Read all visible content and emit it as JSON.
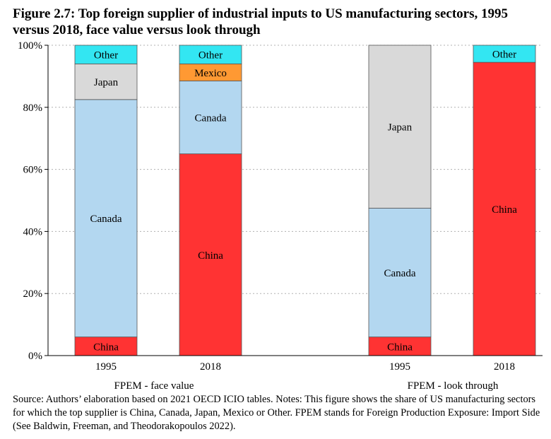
{
  "title": "Figure 2.7: Top foreign supplier of industrial inputs to US manufacturing sectors, 1995 versus 2018, face value versus look through",
  "source": "Source: Authors’ elaboration based on 2021 OECD ICIO tables. Notes: This figure shows the share of US manufacturing sectors for which the top supplier is China, Canada, Japan, Mexico or Other. FPEM stands for Foreign Production Exposure: Import Side (See Baldwin, Freeman, and Theodorakopoulos 2022).",
  "colors": {
    "China": "#ff3333",
    "Canada": "#b3d7f0",
    "Japan": "#d9d9d9",
    "Mexico": "#ff9933",
    "Other": "#33e6f2"
  },
  "chart_data": {
    "type": "bar",
    "stacked": true,
    "ylim": [
      0,
      100
    ],
    "yticks": [
      "0%",
      "20%",
      "40%",
      "60%",
      "80%",
      "100%"
    ],
    "grid": true,
    "groups": [
      {
        "label": "FPEM - face value",
        "bars": [
          {
            "year": "1995",
            "segments": [
              {
                "name": "China",
                "value": 6
              },
              {
                "name": "Canada",
                "value": 76.5
              },
              {
                "name": "Japan",
                "value": 11.5
              },
              {
                "name": "Other",
                "value": 6
              }
            ]
          },
          {
            "year": "2018",
            "segments": [
              {
                "name": "China",
                "value": 65
              },
              {
                "name": "Canada",
                "value": 23.5
              },
              {
                "name": "Mexico",
                "value": 5.5
              },
              {
                "name": "Other",
                "value": 6
              }
            ]
          }
        ]
      },
      {
        "label": "FPEM - look through",
        "bars": [
          {
            "year": "1995",
            "segments": [
              {
                "name": "China",
                "value": 6
              },
              {
                "name": "Canada",
                "value": 41.5
              },
              {
                "name": "Japan",
                "value": 52.5
              }
            ]
          },
          {
            "year": "2018",
            "segments": [
              {
                "name": "China",
                "value": 94.5
              },
              {
                "name": "Other",
                "value": 5.5
              }
            ]
          }
        ]
      }
    ]
  }
}
